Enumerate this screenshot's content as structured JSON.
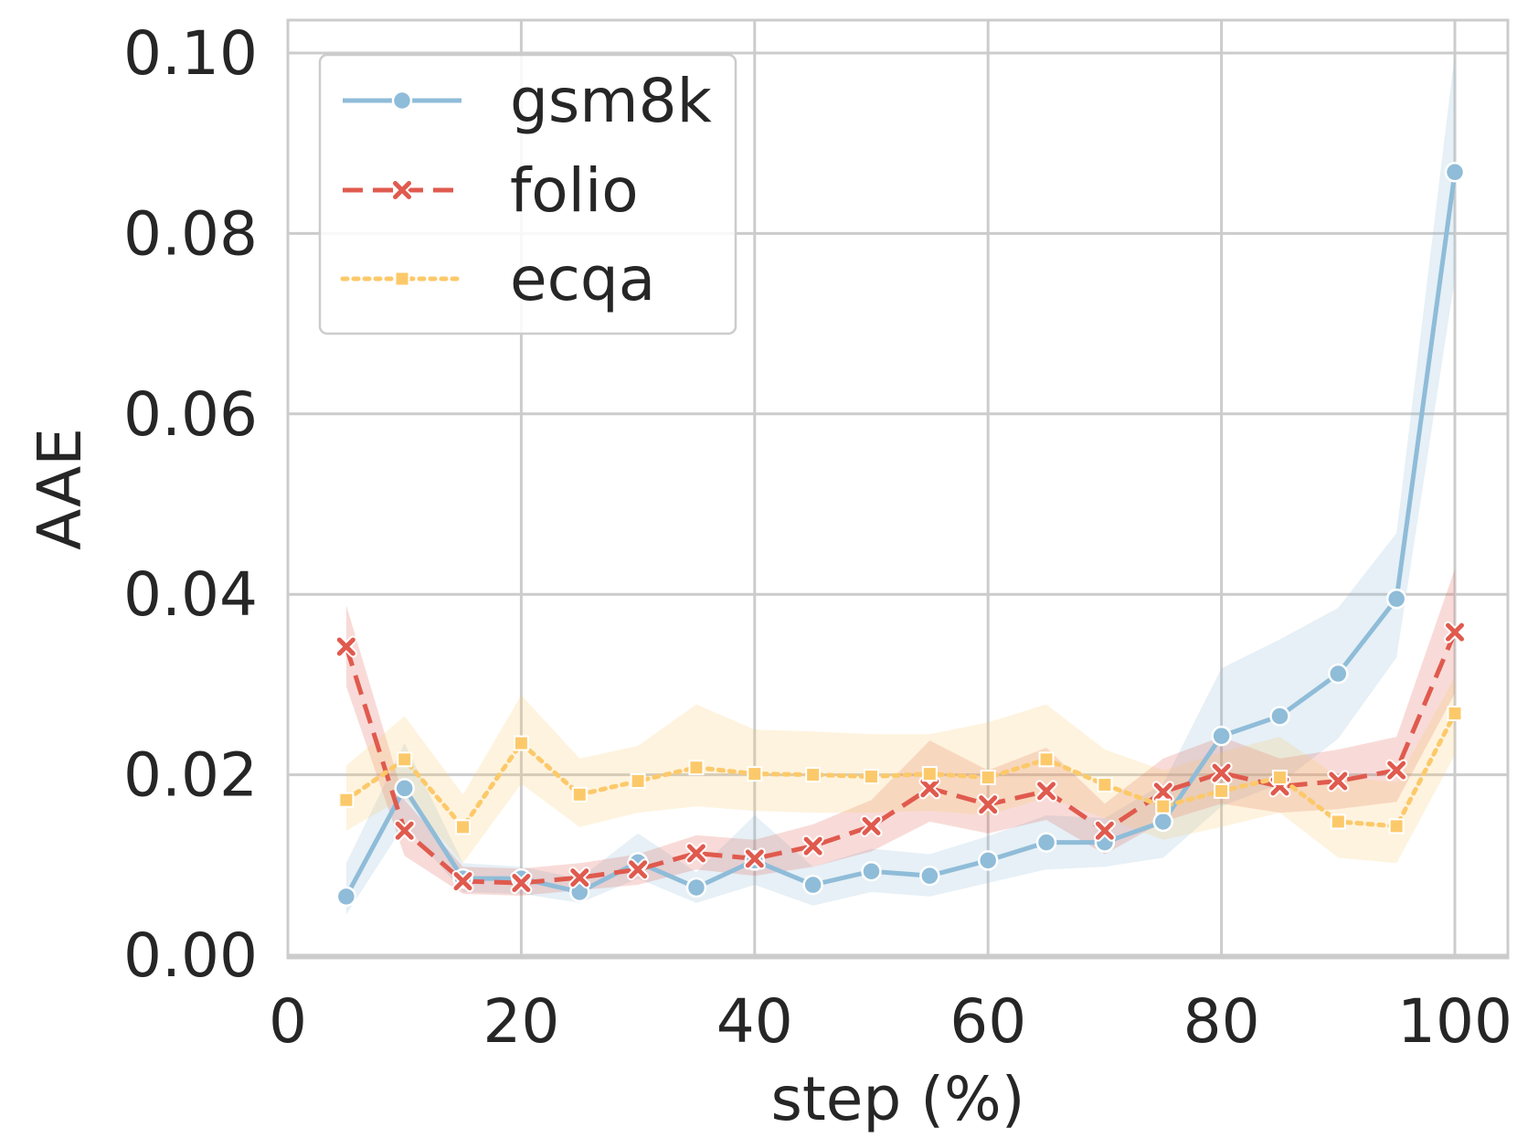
{
  "chart_data": {
    "type": "line",
    "title": "",
    "xlabel": "step (%)",
    "ylabel": "AAE",
    "xlim": [
      0,
      105
    ],
    "ylim": [
      0,
      0.1
    ],
    "grid": true,
    "legend": "upper-left",
    "x": [
      5,
      10,
      15,
      20,
      25,
      30,
      35,
      40,
      45,
      50,
      55,
      60,
      65,
      70,
      75,
      80,
      85,
      90,
      95,
      100
    ],
    "xticks": [
      {
        "value": 0,
        "label": "0"
      },
      {
        "value": 20,
        "label": "20"
      },
      {
        "value": 40,
        "label": "40"
      },
      {
        "value": 60,
        "label": "60"
      },
      {
        "value": 80,
        "label": "80"
      },
      {
        "value": 100,
        "label": "100"
      }
    ],
    "yticks": [
      {
        "value": 0,
        "label": "0.00"
      },
      {
        "value": 0.02,
        "label": "0.02"
      },
      {
        "value": 0.04,
        "label": "0.04"
      },
      {
        "value": 0.06,
        "label": "0.06"
      },
      {
        "value": 0.08,
        "label": "0.08"
      },
      {
        "value": 0.1,
        "label": "0.10"
      }
    ],
    "series": [
      {
        "name": "gsm8k",
        "color": "#8fbcd8",
        "marker": "circle",
        "linestyle": "solid",
        "values": [
          0.0065,
          0.0185,
          0.0085,
          0.0085,
          0.007,
          0.0103,
          0.0075,
          0.0105,
          0.0078,
          0.0093,
          0.0088,
          0.0105,
          0.0125,
          0.0125,
          0.0148,
          0.0243,
          0.0265,
          0.0312,
          0.0395,
          0.0868
        ],
        "lower": [
          0.0045,
          0.0145,
          0.007,
          0.0068,
          0.0058,
          0.0085,
          0.0058,
          0.0078,
          0.0055,
          0.007,
          0.0065,
          0.008,
          0.0095,
          0.0098,
          0.0108,
          0.0165,
          0.019,
          0.024,
          0.033,
          0.075
        ],
        "upper": [
          0.0102,
          0.0235,
          0.0102,
          0.0098,
          0.0085,
          0.0135,
          0.0092,
          0.0155,
          0.0098,
          0.0118,
          0.0112,
          0.0132,
          0.0155,
          0.0152,
          0.019,
          0.0318,
          0.035,
          0.0385,
          0.0468,
          0.1
        ]
      },
      {
        "name": "folio",
        "color": "#e05a4e",
        "marker": "x",
        "linestyle": "dashed",
        "values": [
          0.0342,
          0.0138,
          0.0082,
          0.008,
          0.0086,
          0.0095,
          0.0113,
          0.0107,
          0.0121,
          0.0143,
          0.0185,
          0.0167,
          0.0182,
          0.0138,
          0.0181,
          0.0202,
          0.0187,
          0.0193,
          0.0205,
          0.0358
        ],
        "lower": [
          0.0298,
          0.011,
          0.0068,
          0.0066,
          0.0072,
          0.0078,
          0.0095,
          0.0088,
          0.0098,
          0.0115,
          0.0148,
          0.0135,
          0.015,
          0.0112,
          0.0148,
          0.0168,
          0.0158,
          0.0162,
          0.017,
          0.029
        ],
        "upper": [
          0.0388,
          0.0172,
          0.0098,
          0.0096,
          0.0102,
          0.0112,
          0.0133,
          0.0128,
          0.0145,
          0.0172,
          0.0238,
          0.0205,
          0.023,
          0.0168,
          0.0218,
          0.0242,
          0.0218,
          0.0228,
          0.0242,
          0.0428
        ]
      },
      {
        "name": "ecqa",
        "color": "#fcc96a",
        "marker": "square",
        "linestyle": "dotted",
        "values": [
          0.0172,
          0.0217,
          0.0142,
          0.0235,
          0.0178,
          0.0193,
          0.0208,
          0.0201,
          0.02,
          0.0198,
          0.0201,
          0.0197,
          0.0217,
          0.0189,
          0.0165,
          0.0182,
          0.0197,
          0.0148,
          0.0143,
          0.0268
        ],
        "lower": [
          0.0138,
          0.0175,
          0.0102,
          0.019,
          0.0142,
          0.0158,
          0.0165,
          0.016,
          0.0158,
          0.0158,
          0.016,
          0.0155,
          0.0175,
          0.0152,
          0.0128,
          0.0142,
          0.0158,
          0.0108,
          0.0102,
          0.0222
        ],
        "upper": [
          0.021,
          0.0265,
          0.0178,
          0.0288,
          0.0218,
          0.0232,
          0.0278,
          0.025,
          0.0248,
          0.0245,
          0.0245,
          0.0258,
          0.0278,
          0.0228,
          0.0205,
          0.0225,
          0.0242,
          0.0198,
          0.0192,
          0.0308
        ]
      }
    ]
  }
}
